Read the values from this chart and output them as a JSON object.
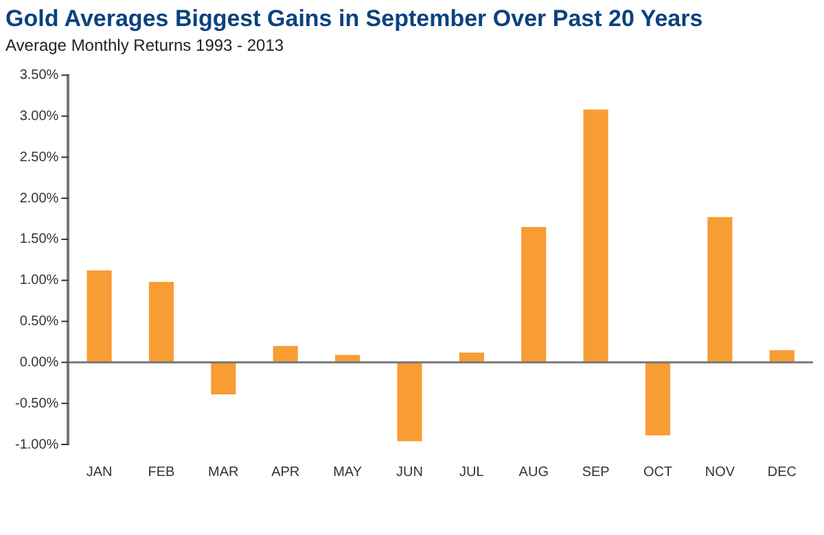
{
  "chart_data": {
    "type": "bar",
    "title": "Gold Averages Biggest Gains in September Over Past 20 Years",
    "subtitle": "Average Monthly Returns 1993 - 2013",
    "categories": [
      "JAN",
      "FEB",
      "MAR",
      "APR",
      "MAY",
      "JUN",
      "JUL",
      "AUG",
      "SEP",
      "OCT",
      "NOV",
      "DEC"
    ],
    "values": [
      1.12,
      0.98,
      -0.39,
      0.2,
      0.09,
      -0.96,
      0.12,
      1.65,
      3.08,
      -0.89,
      1.77,
      0.15
    ],
    "color": "#f89c34",
    "ylim": [
      -1,
      3.5
    ],
    "yticks": [
      {
        "value": -1,
        "label": "-1.00%"
      },
      {
        "value": -0.5,
        "label": "-0.50%"
      },
      {
        "value": 0,
        "label": "0.00%"
      },
      {
        "value": 0.5,
        "label": "0.50%"
      },
      {
        "value": 1,
        "label": "1.00%"
      },
      {
        "value": 1.5,
        "label": "1.50%"
      },
      {
        "value": 2,
        "label": "2.00%"
      },
      {
        "value": 2.5,
        "label": "2.50%"
      },
      {
        "value": 3,
        "label": "3.00%"
      },
      {
        "value": 3.5,
        "label": "3.50%"
      }
    ],
    "ref_lines": [
      {
        "axis": "y",
        "value": 0,
        "color": "#777777"
      }
    ],
    "grid": false,
    "legend": false
  }
}
